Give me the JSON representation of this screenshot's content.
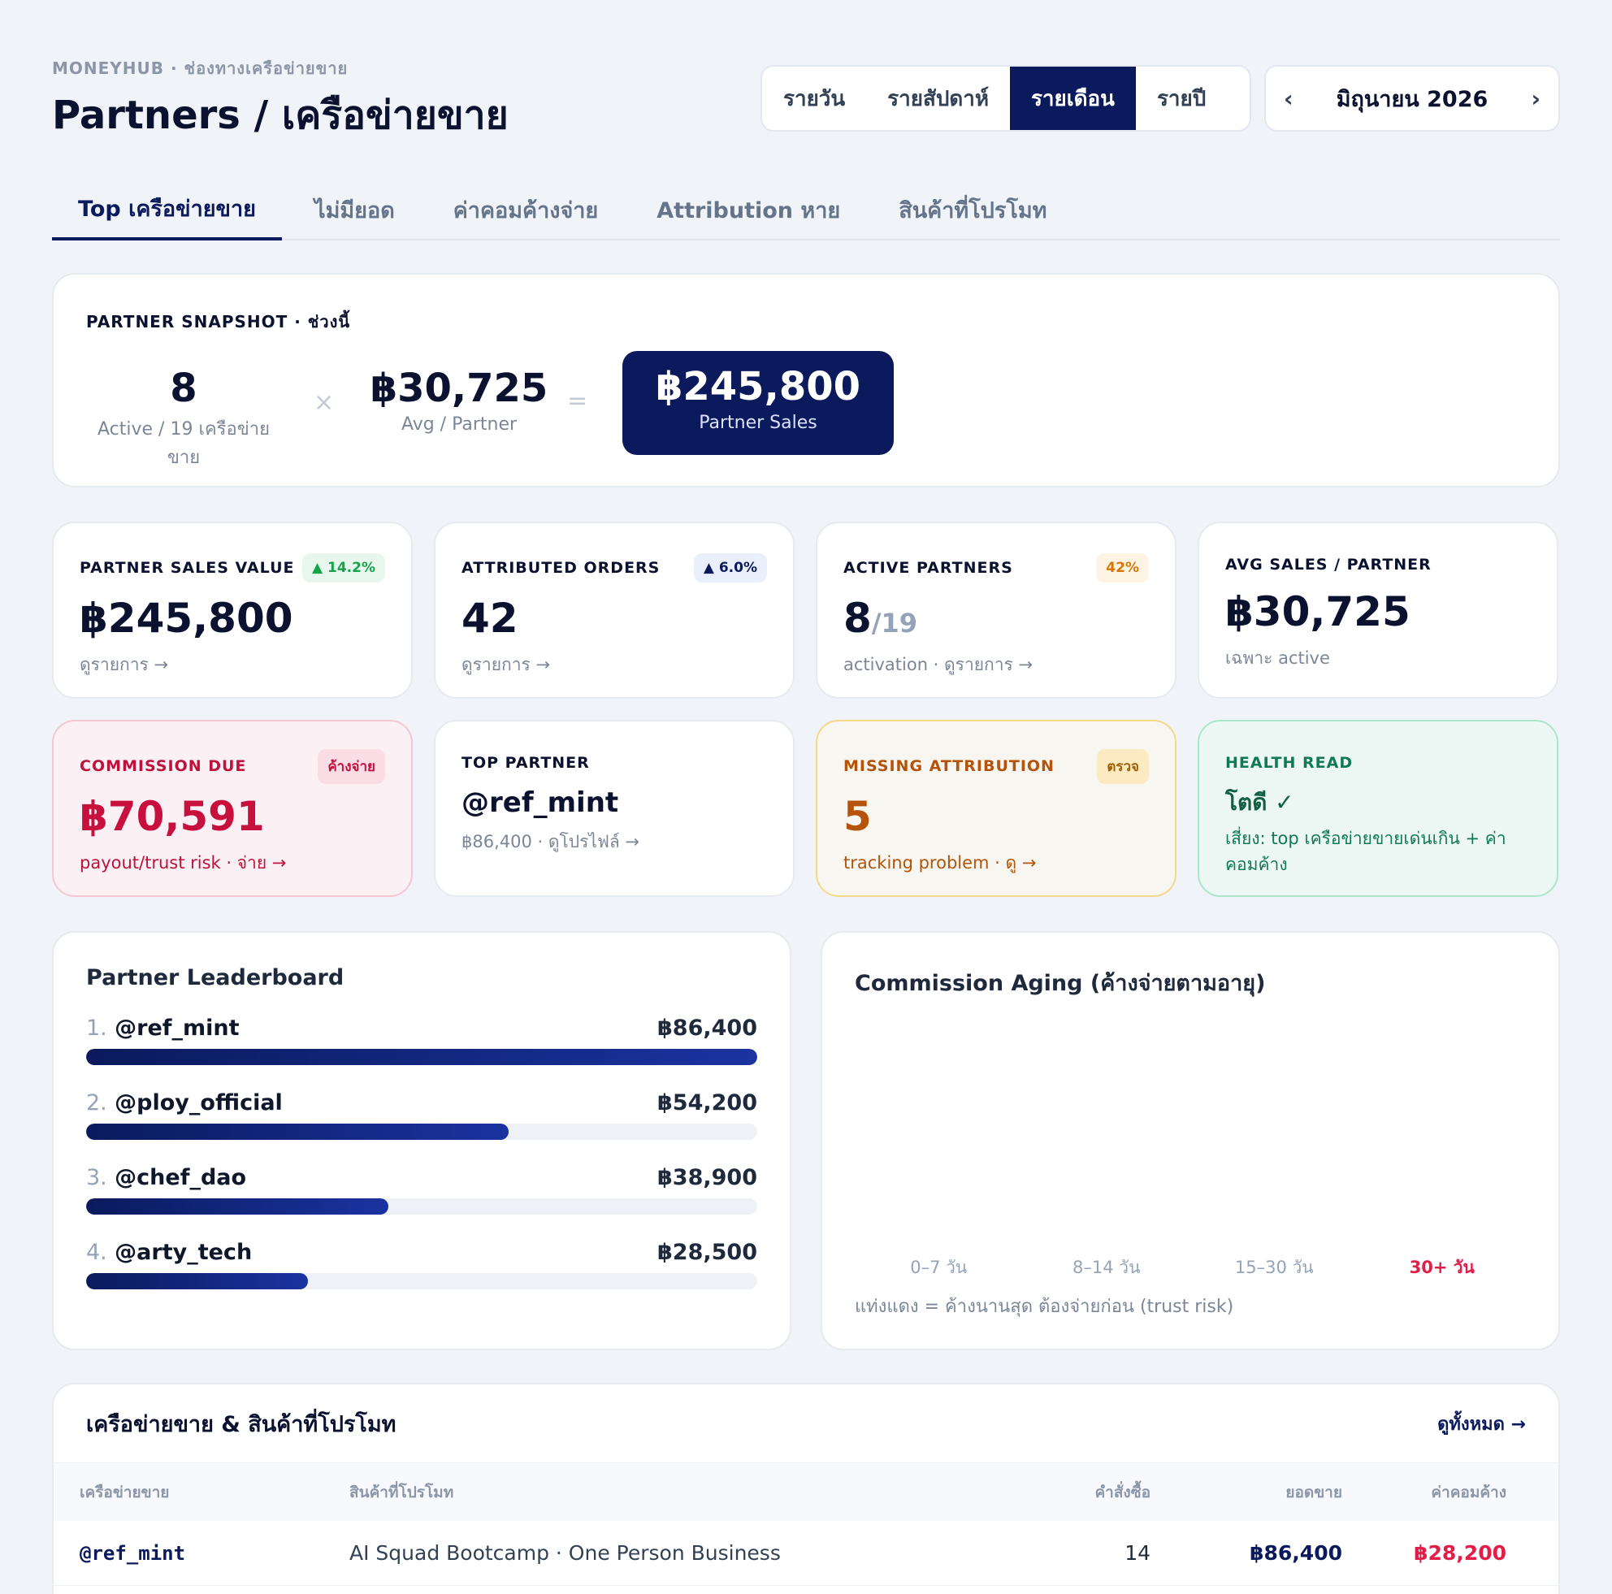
{
  "header": {
    "eyebrow": "MONEYHUB · ช่องทางเครือข่ายขาย",
    "title": "Partners / เครือข่ายขาย",
    "periods": [
      "รายวัน",
      "รายสัปดาห์",
      "รายเดือน",
      "รายปี"
    ],
    "active_period": "รายเดือน",
    "month": "มิถุนายน 2026",
    "prev": "‹",
    "next": "›"
  },
  "tabs": [
    "Top เครือข่ายขาย",
    "ไม่มียอด",
    "ค่าคอมค้างจ่าย",
    "Attribution หาย",
    "สินค้าที่โปรโมท"
  ],
  "snapshot": {
    "label": "PARTNER SNAPSHOT · ช่วงนี้",
    "active_value": "8",
    "active_label": "Active / 19 เครือข่ายขาย",
    "times": "×",
    "avg_value": "฿30,725",
    "avg_label": "Avg / Partner",
    "equals": "=",
    "total_value": "฿245,800",
    "total_label": "Partner Sales"
  },
  "kpis": [
    {
      "label": "PARTNER SALES VALUE",
      "badge": "▲ 14.2%",
      "value": "฿245,800",
      "link": "ดูรายการ →"
    },
    {
      "label": "ATTRIBUTED ORDERS",
      "badge": "▲ 6.0%",
      "value": "42",
      "link": "ดูรายการ →"
    },
    {
      "label": "ACTIVE PARTNERS",
      "badge": "42%",
      "value": "8",
      "value_sub": "/19",
      "link": "activation · ดูรายการ →"
    },
    {
      "label": "AVG SALES / PARTNER",
      "value": "฿30,725",
      "link": "เฉพาะ active"
    },
    {
      "label": "COMMISSION DUE",
      "badge": "ค้างจ่าย",
      "value": "฿70,591",
      "link": "payout/trust risk · จ่าย →"
    },
    {
      "label": "TOP PARTNER",
      "value": "@ref_mint",
      "link": "฿86,400 · ดูโปรไฟล์ →"
    },
    {
      "label": "MISSING ATTRIBUTION",
      "badge": "ตรวจ",
      "value": "5",
      "link": "tracking problem · ดู →"
    },
    {
      "label": "HEALTH READ",
      "value": "โตดี ✓",
      "link": "เสี่ยง: top เครือข่ายขายเด่นเกิน + ค่าคอมค้าง"
    }
  ],
  "colors": {
    "navy": "#0a1a5c",
    "green": "#16a34a",
    "red": "#e11d48",
    "amber": "#d97706",
    "teal": "#0f7a55",
    "rust": "#b45309"
  },
  "leaderboard": {
    "title": "Partner Leaderboard",
    "items": [
      {
        "rank": "1.",
        "name": "@ref_mint",
        "value": "฿86,400",
        "share": 1.0
      },
      {
        "rank": "2.",
        "name": "@ploy_official",
        "value": "฿54,200",
        "share": 0.63
      },
      {
        "rank": "3.",
        "name": "@chef_dao",
        "value": "฿38,900",
        "share": 0.45
      },
      {
        "rank": "4.",
        "name": "@arty_tech",
        "value": "฿28,500",
        "share": 0.33
      }
    ]
  },
  "aging": {
    "title": "Commission Aging (ค้างจ่ายตามอายุ)",
    "buckets": [
      "0–7 วัน",
      "8–14 วัน",
      "15–30 วัน",
      "30+ วัน"
    ],
    "note": "แท่งแดง = ค้างนานสุด ต้องจ่ายก่อน (trust risk)"
  },
  "table": {
    "title": "เครือข่ายขาย & สินค้าที่โปรโมท",
    "view_all": "ดูทั้งหมด →",
    "columns": [
      "เครือข่ายขาย",
      "สินค้าที่โปรโมท",
      "คำสั่งซื้อ",
      "ยอดขาย",
      "ค่าคอมค้าง"
    ],
    "rows": [
      {
        "partner": "@ref_mint",
        "product": "AI Squad Bootcamp · One Person Business",
        "orders": "14",
        "sales": "฿86,400",
        "commission": "฿28,200"
      }
    ]
  }
}
